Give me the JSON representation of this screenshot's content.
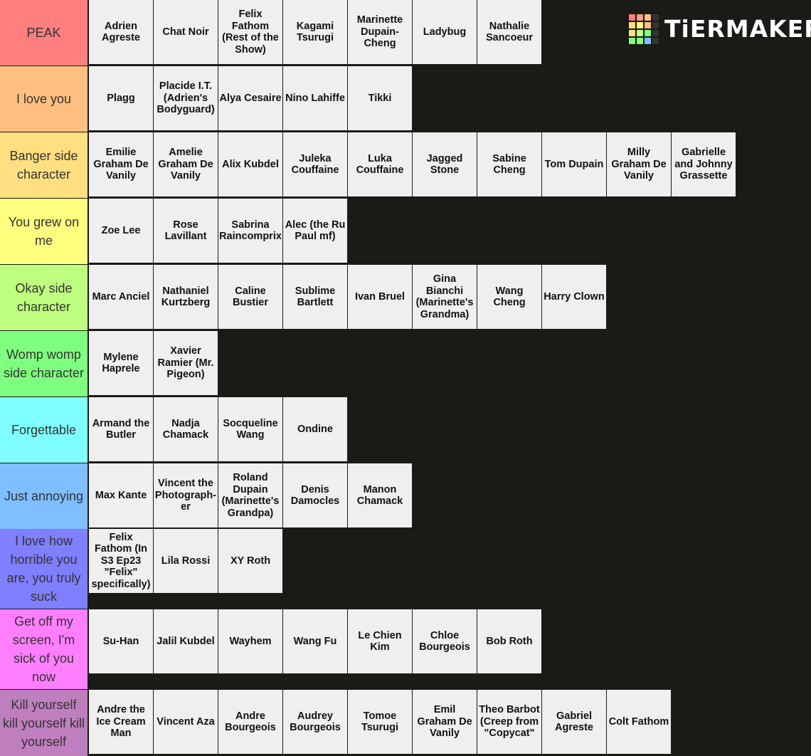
{
  "logo": {
    "text": "TiERMAKER",
    "grid_colors": [
      "#ff7f7f",
      "#ff9f7f",
      "#ffbf7f",
      "#333333",
      "#ffdf7f",
      "#ffff7f",
      "#ffbf7f",
      "#333333",
      "#ffdf7f",
      "#bfff7f",
      "#7fff7f",
      "#333333",
      "#7fff7f",
      "#7fff7f",
      "#7fbfff",
      "#333333"
    ]
  },
  "tiers": [
    {
      "label": "PEAK",
      "color": "#ff7f7f",
      "items": [
        "Adrien Agreste",
        "Chat Noir",
        "Felix Fathom (Rest of the Show)",
        "Kagami Tsurugi",
        "Marinette Dupain-Cheng",
        "Ladybug",
        "Nathalie Sancoeur"
      ]
    },
    {
      "label": "I love you",
      "color": "#ffbf7f",
      "items": [
        "Plagg",
        "Placide I.T. (Adrien's Bodyguard)",
        "Alya Cesaire",
        "Nino Lahiffe",
        "Tikki"
      ]
    },
    {
      "label": "Banger side character",
      "color": "#ffdf7f",
      "items": [
        "Emilie Graham De Vanily",
        "Amelie Graham De Vanily",
        "Alix Kubdel",
        "Juleka Couffaine",
        "Luka Couffaine",
        "Jagged Stone",
        "Sabine Cheng",
        "Tom Dupain",
        "Milly Graham De Vanily",
        "Gabrielle and Johnny Grassette"
      ]
    },
    {
      "label": "You grew on me",
      "color": "#ffff7f",
      "items": [
        "Zoe Lee",
        "Rose Lavillant",
        "Sabrina Raincomprix",
        "Alec (the Ru Paul mf)"
      ]
    },
    {
      "label": "Okay side character",
      "color": "#bfff7f",
      "items": [
        "Marc Anciel",
        "Nathaniel Kurtzberg",
        "Caline Bustier",
        "Sublime Bartlett",
        "Ivan Bruel",
        "Gina Bianchi (Marinette's Grandma)",
        "Wang Cheng",
        "Harry Clown"
      ]
    },
    {
      "label": "Womp womp side character",
      "color": "#7fff7f",
      "items": [
        "Mylene Haprele",
        "Xavier Ramier (Mr. Pigeon)"
      ]
    },
    {
      "label": "Forgettable",
      "color": "#7fffff",
      "items": [
        "Armand the Butler",
        "Nadja Chamack",
        "Socqueline Wang",
        "Ondine"
      ]
    },
    {
      "label": "Just annoying",
      "color": "#7fbfff",
      "items": [
        "Max Kante",
        "Vincent the Photograph-er",
        "Roland Dupain (Marinette's Grandpa)",
        "Denis Damocles",
        "Manon Chamack"
      ]
    },
    {
      "label": "I love how horrible you are, you truly suck",
      "color": "#7f7fff",
      "items": [
        "Felix Fathom (In S3 Ep23 \"Felix\" specifically)",
        "Lila Rossi",
        "XY Roth"
      ]
    },
    {
      "label": "Get off my screen, I'm sick of you now",
      "color": "#ff7fff",
      "items": [
        "Su-Han",
        "Jalil Kubdel",
        "Wayhem",
        "Wang Fu",
        "Le Chien Kim",
        "Chloe Bourgeois",
        "Bob Roth"
      ]
    },
    {
      "label": "Kill yourself kill yourself kill yourself",
      "color": "#bf7fbf",
      "items": [
        "Andre the Ice Cream Man",
        "Vincent Aza",
        "Andre Bourgeois",
        "Audrey Bourgeois",
        "Tomoe Tsurugi",
        "Emil Graham De Vanily",
        "Theo Barbot (Creep from \"Copycat\"",
        "Gabriel Agreste",
        "Colt Fathom"
      ]
    }
  ]
}
